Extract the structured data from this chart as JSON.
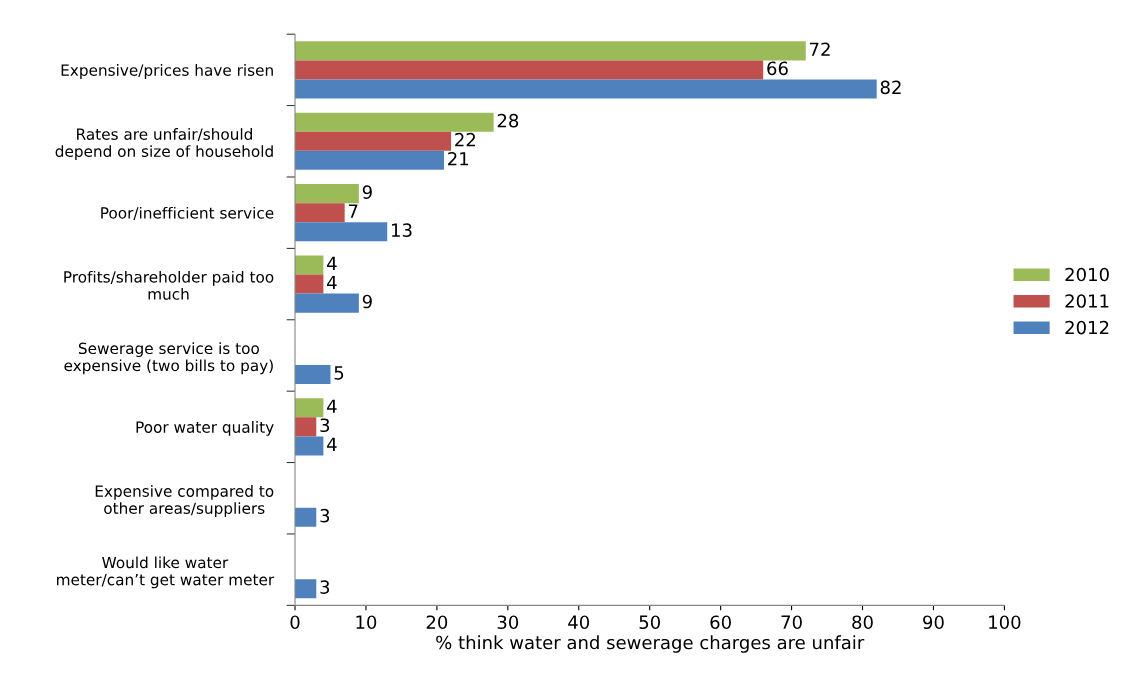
{
  "chart_data": {
    "type": "bar",
    "orientation": "horizontal",
    "xlabel": "% think water and sewerage charges are unfair",
    "categories": [
      "Expensive/prices have risen",
      "Rates are unfair/should\ndepend on size of household",
      "Poor/inefficient service",
      "Profits/shareholder paid too\nmuch",
      "Sewerage service is too\nexpensive (two bills to pay)",
      "Poor water quality",
      "Expensive compared to\nother areas/suppliers",
      "Would like water\nmeter/can’t get water meter"
    ],
    "series": [
      {
        "name": "2010",
        "color": "#9bbb59",
        "values": [
          72,
          28,
          9,
          4,
          null,
          4,
          null,
          null
        ]
      },
      {
        "name": "2011",
        "color": "#c0504d",
        "values": [
          66,
          22,
          7,
          4,
          null,
          3,
          null,
          null
        ]
      },
      {
        "name": "2012",
        "color": "#4f81bd",
        "values": [
          82,
          21,
          13,
          9,
          5,
          4,
          3,
          3
        ]
      }
    ],
    "xlim": [
      0,
      100
    ],
    "xticks": [
      0,
      10,
      20,
      30,
      40,
      50,
      60,
      70,
      80,
      90,
      100
    ],
    "data_labels": true,
    "grid": false,
    "legend": "right"
  }
}
